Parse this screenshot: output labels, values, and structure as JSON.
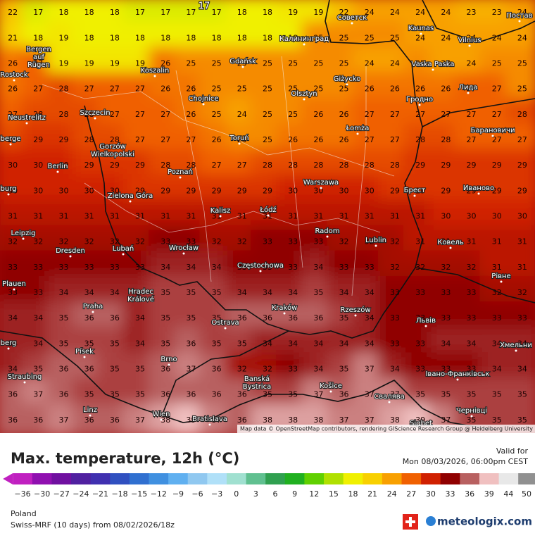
{
  "map": {
    "contour_label": "17",
    "attribution": "Map data © OpenStreetMap contributors, rendering GIScience Research Group @ Heidelberg University",
    "temperature_grid": [
      [
        22,
        17,
        18,
        18,
        18,
        17,
        17,
        17,
        17,
        18,
        18,
        19,
        19,
        22,
        24,
        24,
        24,
        24,
        23,
        23,
        24
      ],
      [
        21,
        18,
        19,
        18,
        18,
        18,
        18,
        18,
        18,
        18,
        18,
        18,
        25,
        25,
        25,
        25,
        24,
        24,
        24,
        24,
        24
      ],
      [
        26,
        27,
        19,
        19,
        19,
        19,
        26,
        25,
        25,
        25,
        25,
        25,
        25,
        25,
        24,
        24,
        25,
        24,
        24,
        25,
        25
      ],
      [
        26,
        27,
        28,
        27,
        27,
        27,
        26,
        26,
        25,
        25,
        25,
        25,
        25,
        25,
        26,
        26,
        26,
        26,
        27,
        27,
        25
      ],
      [
        27,
        28,
        28,
        28,
        27,
        27,
        27,
        26,
        25,
        24,
        25,
        25,
        26,
        26,
        27,
        27,
        27,
        27,
        27,
        27,
        28
      ],
      [
        28,
        29,
        29,
        28,
        28,
        27,
        27,
        27,
        26,
        25,
        25,
        26,
        26,
        26,
        27,
        27,
        28,
        28,
        27,
        27,
        27
      ],
      [
        30,
        30,
        30,
        29,
        29,
        29,
        28,
        28,
        27,
        27,
        28,
        28,
        28,
        28,
        28,
        28,
        29,
        29,
        29,
        29,
        29
      ],
      [
        30,
        30,
        30,
        30,
        30,
        29,
        29,
        29,
        29,
        29,
        29,
        30,
        30,
        30,
        30,
        29,
        29,
        29,
        29,
        29,
        29
      ],
      [
        31,
        31,
        31,
        31,
        31,
        31,
        31,
        31,
        31,
        31,
        31,
        31,
        31,
        31,
        31,
        31,
        31,
        30,
        30,
        30,
        30
      ],
      [
        32,
        32,
        32,
        32,
        32,
        32,
        33,
        33,
        32,
        32,
        33,
        33,
        33,
        32,
        32,
        32,
        31,
        31,
        31,
        31,
        31
      ],
      [
        33,
        33,
        33,
        33,
        33,
        33,
        34,
        34,
        34,
        33,
        33,
        33,
        34,
        33,
        33,
        32,
        32,
        32,
        32,
        31,
        31
      ],
      [
        33,
        33,
        34,
        34,
        34,
        34,
        35,
        35,
        35,
        34,
        34,
        34,
        35,
        34,
        34,
        33,
        33,
        33,
        33,
        32,
        32
      ],
      [
        34,
        34,
        35,
        36,
        36,
        34,
        35,
        35,
        35,
        36,
        36,
        36,
        36,
        35,
        34,
        33,
        33,
        33,
        33,
        33,
        33
      ],
      [
        34,
        34,
        35,
        35,
        35,
        34,
        35,
        36,
        35,
        35,
        34,
        34,
        34,
        34,
        34,
        33,
        33,
        34,
        34,
        34,
        34
      ],
      [
        34,
        35,
        36,
        36,
        35,
        35,
        36,
        37,
        36,
        32,
        32,
        33,
        34,
        35,
        37,
        34,
        33,
        33,
        33,
        34,
        34
      ],
      [
        36,
        37,
        36,
        35,
        35,
        35,
        36,
        36,
        36,
        36,
        35,
        35,
        37,
        36,
        37,
        37,
        35,
        35,
        35,
        35,
        35
      ],
      [
        36,
        36,
        37,
        36,
        36,
        37,
        38,
        39,
        37,
        36,
        38,
        38,
        38,
        37,
        37,
        38,
        39,
        37,
        35,
        35,
        35
      ]
    ],
    "cities": [
      "Советск",
      "Kaunas",
      "Vilnius",
      "Постав",
      "Калининград",
      "Bergen auf Rügen",
      "Koszalin",
      "Gdańsk",
      "Rostock",
      "Vaska Paska",
      "Giżycko",
      "Лида",
      "Olsztyn",
      "Chojnice",
      "Гродно",
      "Szczecin",
      "Neustrelitz",
      "Łomża",
      "Барановичи",
      "Toruń",
      "Gorzów Wielkopolski",
      "berge",
      "Berlin",
      "Poznań",
      "Warszawa",
      "Брест",
      "Иваново",
      "burg",
      "Zielona Góra",
      "Kalisz",
      "Łódź",
      "Radom",
      "Leipzig",
      "Lublin",
      "Ковель",
      "Dresden",
      "Lubań",
      "Wrocław",
      "Częstochowa",
      "Plauen",
      "Рівне",
      "Hradec Králové",
      "Praha",
      "Kraków",
      "Rzeszów",
      "Ostrava",
      "Львів",
      "berg",
      "Хмельни",
      "Písek",
      "Brno",
      "Straubing",
      "Івано-Франківськ",
      "Banská Bystrica",
      "Košice",
      "Свалява",
      "Linz",
      "Wien",
      "Bratislava",
      "Чернівці",
      "Sighet"
    ]
  },
  "footer": {
    "title": "Max. temperature, 12h (°C)",
    "valid_label": "Valid for",
    "valid_time": "Mon 08/03/2026, 06:00pm CEST",
    "region": "Poland",
    "model": "Swiss-MRF (10 days) from 08/02/2026/18z",
    "brand": "meteologix.com"
  },
  "legend": {
    "ticks": [
      {
        "value": -36,
        "label": "−36"
      },
      {
        "value": -30,
        "label": "−30"
      },
      {
        "value": -27,
        "label": "−27"
      },
      {
        "value": -24,
        "label": "−24"
      },
      {
        "value": -21,
        "label": "−21"
      },
      {
        "value": -18,
        "label": "−18"
      },
      {
        "value": -15,
        "label": "−15"
      },
      {
        "value": -12,
        "label": "−12"
      },
      {
        "value": -9,
        "label": "−9"
      },
      {
        "value": -6,
        "label": "−6"
      },
      {
        "value": -3,
        "label": "−3"
      },
      0,
      3,
      6,
      9,
      12,
      15,
      18,
      21,
      24,
      27,
      30,
      33,
      36,
      39,
      44,
      50
    ],
    "colors": [
      "#c020c0",
      "#9010b0",
      "#7010a0",
      "#5020a0",
      "#4030b0",
      "#3050c0",
      "#3070d0",
      "#4090e0",
      "#60b0f0",
      "#90c8f0",
      "#b0e0f8",
      "#a0e0d0",
      "#60c090",
      "#30a050",
      "#20b020",
      "#60d000",
      "#b0e000",
      "#f0f000",
      "#f8d000",
      "#f8a000",
      "#f06000",
      "#d02000",
      "#900000",
      "#b86060",
      "#f0c0c0",
      "#e8e8e8",
      "#909090"
    ]
  }
}
